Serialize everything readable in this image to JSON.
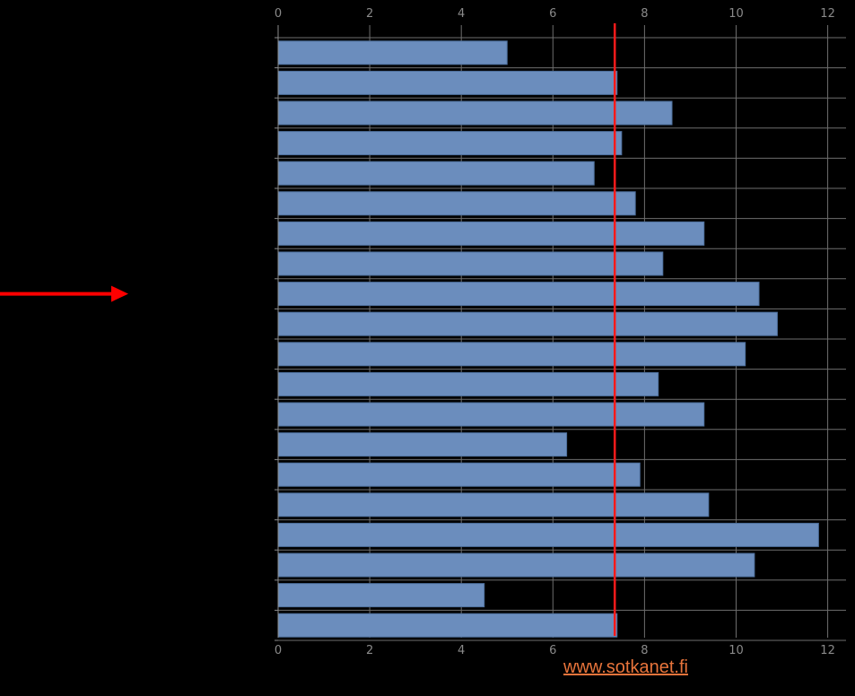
{
  "chart_data": {
    "type": "bar",
    "orientation": "horizontal",
    "x_ticks": [
      0,
      2,
      4,
      6,
      8,
      10,
      12
    ],
    "xlim": [
      0,
      12.4
    ],
    "values": [
      5.0,
      7.4,
      8.6,
      7.5,
      6.9,
      7.8,
      9.3,
      8.4,
      10.5,
      10.9,
      10.2,
      8.3,
      9.3,
      6.3,
      7.9,
      9.4,
      11.8,
      10.4,
      4.5,
      7.4
    ],
    "reference_value": 7.35,
    "highlighted_index": 8,
    "grid": true,
    "tick_labels_top": true,
    "tick_labels_bottom": true
  },
  "colors": {
    "background": "#000000",
    "bar": "#6b8dbd",
    "bar_edge": "#4d6f9c",
    "grid": "#6e6e6e",
    "axis": "#8a8a8a",
    "tick_text": "#8a8a8a",
    "reference_line": "#ff1a1a",
    "arrow": "#ff0000",
    "link": "#e8743b"
  },
  "icons": {
    "pointer": "arrow-right-icon"
  },
  "source": {
    "link_text": "www.sotkanet.fi"
  }
}
